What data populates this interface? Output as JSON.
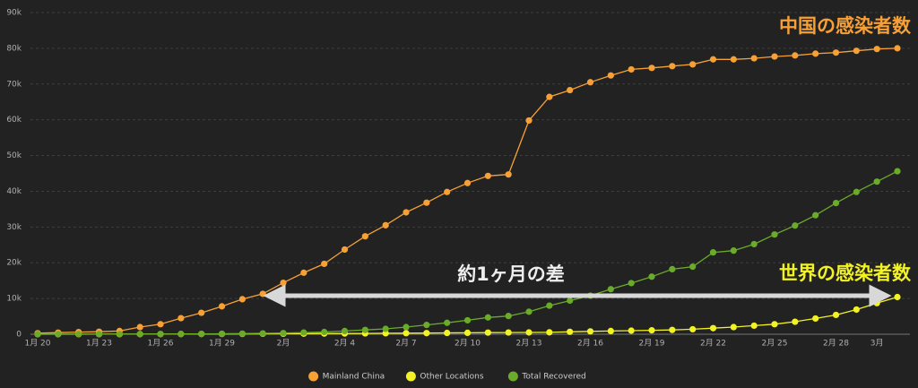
{
  "chart_data": {
    "type": "line",
    "categories": [
      "1月 20",
      null,
      null,
      "1月 23",
      null,
      null,
      "1月 26",
      null,
      null,
      "1月 29",
      null,
      null,
      "2月",
      null,
      null,
      "2月 4",
      null,
      null,
      "2月 7",
      null,
      null,
      "2月 10",
      null,
      null,
      "2月 13",
      null,
      null,
      "2月 16",
      null,
      null,
      "2月 19",
      null,
      null,
      "2月 22",
      null,
      null,
      "2月 25",
      null,
      null,
      "2月 28",
      null,
      "3月",
      null
    ],
    "series": [
      {
        "name": "Mainland China",
        "color": "#f7a035",
        "values": [
          300,
          450,
          600,
          700,
          900,
          2000,
          2800,
          4500,
          6000,
          7800,
          9800,
          11300,
          14400,
          17200,
          19700,
          23700,
          27400,
          30500,
          34100,
          36800,
          39800,
          42300,
          44300,
          44700,
          59800,
          66400,
          68300,
          70500,
          72400,
          74100,
          74500,
          75000,
          75500,
          76900,
          76900,
          77200,
          77700,
          78000,
          78500,
          78800,
          79300,
          79800,
          80000
        ]
      },
      {
        "name": "Other Locations",
        "color": "#f2f224",
        "values": [
          5,
          7,
          10,
          15,
          20,
          30,
          40,
          55,
          70,
          80,
          100,
          130,
          150,
          160,
          190,
          210,
          230,
          270,
          300,
          320,
          370,
          400,
          450,
          480,
          500,
          530,
          680,
          800,
          900,
          1000,
          1100,
          1200,
          1400,
          1700,
          2000,
          2400,
          2800,
          3500,
          4400,
          5400,
          6900,
          8700,
          10400
        ]
      },
      {
        "name": "Total Recovered",
        "color": "#6aab2a",
        "values": [
          25,
          30,
          30,
          35,
          40,
          50,
          50,
          60,
          100,
          130,
          170,
          240,
          330,
          480,
          630,
          900,
          1200,
          1500,
          2000,
          2600,
          3200,
          3900,
          4700,
          5100,
          6300,
          8000,
          9400,
          10800,
          12600,
          14300,
          16100,
          18200,
          18900,
          22900,
          23400,
          25200,
          27900,
          30400,
          33300,
          36700,
          39800,
          42700,
          45600
        ]
      }
    ],
    "ylim": [
      0,
      90000
    ],
    "yticks": [
      0,
      {
        "value": 10000,
        "label": "10k"
      },
      {
        "value": 20000,
        "label": "20k"
      },
      {
        "value": 30000,
        "label": "30k"
      },
      {
        "value": 40000,
        "label": "40k"
      },
      {
        "value": 50000,
        "label": "50k"
      },
      {
        "value": 60000,
        "label": "60k"
      },
      {
        "value": 70000,
        "label": "70k"
      },
      {
        "value": 80000,
        "label": "80k"
      },
      {
        "value": 90000,
        "label": "90k"
      }
    ],
    "grid": true,
    "legend": "bottom",
    "annotations": [
      "中国の感染者数",
      "世界の感染者数",
      "約1ヶ月の差"
    ]
  }
}
